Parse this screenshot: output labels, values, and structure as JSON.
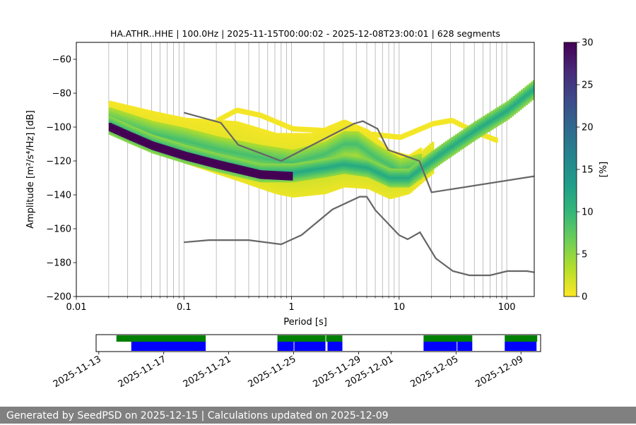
{
  "chart_data": [
    {
      "type": "heatmap",
      "title": "HA.ATHR..HHE | 100.0Hz | 2025-11-15T00:00:02 - 2025-12-08T23:00:01 | 628 segments",
      "xlabel": "Period [s]",
      "ylabel": "Amplitude [m²/s⁴/Hz] [dB]",
      "xscale": "log",
      "xlim": [
        0.01,
        180
      ],
      "ylim": [
        -200,
        -50
      ],
      "xticks": [
        {
          "value": 0.01,
          "label": "0.01"
        },
        {
          "value": 0.1,
          "label": "0.1"
        },
        {
          "value": 1,
          "label": "1"
        },
        {
          "value": 10,
          "label": "10"
        },
        {
          "value": 100,
          "label": "100"
        }
      ],
      "yticks": [
        {
          "value": -60,
          "label": "−60"
        },
        {
          "value": -80,
          "label": "−80"
        },
        {
          "value": -100,
          "label": "−100"
        },
        {
          "value": -120,
          "label": "−120"
        },
        {
          "value": -140,
          "label": "−140"
        },
        {
          "value": -160,
          "label": "−160"
        },
        {
          "value": -180,
          "label": "−180"
        },
        {
          "value": -200,
          "label": "−200"
        }
      ],
      "grid": true,
      "colorbar": {
        "label": "[%]",
        "range": [
          0,
          30
        ],
        "ticks": [
          {
            "value": 0,
            "label": "0"
          },
          {
            "value": 5,
            "label": "5"
          },
          {
            "value": 10,
            "label": "10"
          },
          {
            "value": 15,
            "label": "15"
          },
          {
            "value": 20,
            "label": "20"
          },
          {
            "value": 25,
            "label": "25"
          },
          {
            "value": 30,
            "label": "30"
          }
        ],
        "colors": [
          "#fde725",
          "#b5de2b",
          "#6ece58",
          "#35b779",
          "#1f9e89",
          "#26828e",
          "#31688e",
          "#3e4989",
          "#482878",
          "#440154"
        ]
      },
      "psd_bands": [
        {
          "name": "lower-band",
          "start_period": 0.02,
          "points": [
            [
              0.02,
              -99
            ],
            [
              0.03,
              -104
            ],
            [
              0.05,
              -110
            ],
            [
              0.1,
              -116
            ],
            [
              0.2,
              -121
            ],
            [
              0.5,
              -127
            ],
            [
              1.0,
              -127
            ],
            [
              2.0,
              -124
            ],
            [
              3.0,
              -122
            ],
            [
              5.0,
              -124
            ],
            [
              8.0,
              -130
            ],
            [
              12.0,
              -130
            ],
            [
              16.0,
              -124
            ],
            [
              25.0,
              -115
            ],
            [
              50.0,
              -102
            ],
            [
              100.0,
              -90
            ],
            [
              180.0,
              -77
            ]
          ],
          "width": 5,
          "color_value": 12
        },
        {
          "name": "lower-edge",
          "start_period": 0.02,
          "points": [
            [
              0.02,
              -100
            ],
            [
              0.03,
              -105
            ],
            [
              0.05,
              -111
            ],
            [
              0.1,
              -117
            ],
            [
              0.2,
              -122
            ],
            [
              0.5,
              -128
            ],
            [
              1.0,
              -129
            ]
          ],
          "width": 2,
          "color_value": 30
        },
        {
          "name": "upper-band",
          "start_period": 0.02,
          "points": [
            [
              0.02,
              -96
            ],
            [
              0.05,
              -104
            ],
            [
              0.1,
              -108
            ],
            [
              0.2,
              -113
            ],
            [
              0.5,
              -118
            ],
            [
              1.0,
              -121
            ],
            [
              2.0,
              -116
            ],
            [
              3.0,
              -110
            ],
            [
              4.0,
              -110
            ],
            [
              6.0,
              -118
            ],
            [
              10.0,
              -126
            ],
            [
              16.0,
              -123
            ]
          ],
          "width": 7,
          "color_value": 9
        },
        {
          "name": "yellow-envelope-low",
          "start_period": 0.02,
          "points": [
            [
              0.02,
              -95
            ],
            [
              0.1,
              -112
            ],
            [
              0.3,
              -122
            ],
            [
              0.7,
              -130
            ],
            [
              1.0,
              -132
            ],
            [
              2.0,
              -130
            ],
            [
              3.0,
              -126
            ],
            [
              5.0,
              -127
            ],
            [
              8.0,
              -133
            ],
            [
              12.0,
              -130
            ],
            [
              20.0,
              -118
            ]
          ],
          "width": 9,
          "color_value": 2
        },
        {
          "name": "yellow-envelope-high",
          "start_period": 0.02,
          "points": [
            [
              0.02,
              -93
            ],
            [
              0.05,
              -99
            ],
            [
              0.1,
              -103
            ],
            [
              0.3,
              -105
            ],
            [
              0.7,
              -112
            ],
            [
              1.5,
              -112
            ],
            [
              3.0,
              -104
            ],
            [
              5.0,
              -110
            ],
            [
              8.0,
              -122
            ],
            [
              12.0,
              -125
            ],
            [
              16.0,
              -120
            ]
          ],
          "width": 8,
          "color_value": 1
        },
        {
          "name": "sparse-high",
          "start_period": 0.2,
          "points": [
            [
              0.2,
              -96
            ],
            [
              0.3,
              -90
            ],
            [
              0.5,
              -93
            ],
            [
              1.0,
              -101
            ],
            [
              2.0,
              -102
            ],
            [
              5.0,
              -104
            ],
            [
              10.0,
              -106
            ],
            [
              20.0,
              -98
            ],
            [
              30.0,
              -96
            ],
            [
              50.0,
              -103
            ],
            [
              80.0,
              -108
            ]
          ],
          "width": 3,
          "color_value": 0.5
        }
      ],
      "series": [
        {
          "name": "NHNM",
          "x": [
            0.1,
            0.22,
            0.32,
            0.8,
            3.8,
            4.6,
            6.3,
            7.9,
            15.4,
            20.0,
            180.0
          ],
          "values": [
            -91.5,
            -97.4,
            -110.5,
            -120.0,
            -98.0,
            -96.5,
            -101.0,
            -113.5,
            -120.0,
            -138.5,
            -129.0
          ]
        },
        {
          "name": "NLNM",
          "x": [
            0.1,
            0.17,
            0.4,
            0.8,
            1.24,
            2.4,
            4.3,
            5.0,
            6.0,
            10.0,
            12.0,
            15.6,
            21.9,
            31.6,
            45.0,
            70.0,
            101.0,
            154.0,
            180.0
          ],
          "values": [
            -168.0,
            -166.7,
            -166.7,
            -169.2,
            -163.7,
            -148.6,
            -141.1,
            -141.1,
            -149.0,
            -163.8,
            -166.2,
            -162.1,
            -177.5,
            -185.0,
            -187.5,
            -187.5,
            -185.0,
            -185.0,
            -185.7
          ]
        }
      ]
    },
    {
      "type": "timeline",
      "dates": [
        "2025-11-13",
        "2025-11-17",
        "2025-11-21",
        "2025-11-25",
        "2025-11-29",
        "2025-12-01",
        "2025-12-05",
        "2025-12-09"
      ],
      "xlim": [
        "2025-11-12T20:00",
        "2025-12-10T05:00"
      ],
      "green_segments": [
        [
          "2025-11-14T02:00",
          "2025-11-19T14:00"
        ],
        [
          "2025-11-24T00:00",
          "2025-11-26T23:00"
        ],
        [
          "2025-11-27T00:00",
          "2025-11-28T00:00"
        ],
        [
          "2025-12-03T00:00",
          "2025-12-06T00:00"
        ],
        [
          "2025-12-08T00:00",
          "2025-12-10T00:00"
        ]
      ],
      "blue_segments": [
        [
          "2025-11-15T00:00",
          "2025-11-19T14:00"
        ],
        [
          "2025-11-24T00:00",
          "2025-11-25T00:00"
        ],
        [
          "2025-11-25T01:00",
          "2025-11-26T23:00"
        ],
        [
          "2025-11-27T02:00",
          "2025-11-28T00:00"
        ],
        [
          "2025-12-03T00:00",
          "2025-12-05T01:00"
        ],
        [
          "2025-12-05T02:00",
          "2025-12-06T00:00"
        ],
        [
          "2025-12-08T00:00",
          "2025-12-09T23:00"
        ]
      ]
    }
  ],
  "footer": "Generated by SeedPSD on 2025-12-15 | Calculations updated on 2025-12-09"
}
